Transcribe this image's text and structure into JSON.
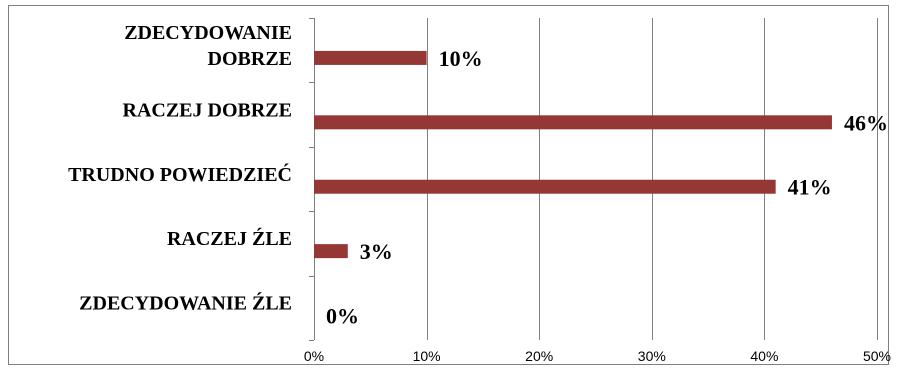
{
  "chart_data": {
    "type": "bar",
    "orientation": "horizontal",
    "title": "",
    "xlabel": "",
    "ylabel": "",
    "categories": [
      [
        "ZDECYDOWANIE",
        "DOBRZE"
      ],
      [
        "RACZEJ DOBRZE"
      ],
      [
        "TRUDNO POWIEDZIEĆ"
      ],
      [
        "RACZEJ ŹLE"
      ],
      [
        "ZDECYDOWANIE ŹLE"
      ]
    ],
    "values": [
      10,
      46,
      41,
      3,
      0
    ],
    "data_labels": [
      "10%",
      "46%",
      "41%",
      "3%",
      "0%"
    ],
    "xlim": [
      0,
      50
    ],
    "x_ticks": [
      0,
      10,
      20,
      30,
      40,
      50
    ],
    "x_tick_labels": [
      "0%",
      "10%",
      "20%",
      "30%",
      "40%",
      "50%"
    ],
    "grid": "vertical",
    "legend": "none",
    "bar_color": "#953735",
    "grid_color": "#808080"
  }
}
